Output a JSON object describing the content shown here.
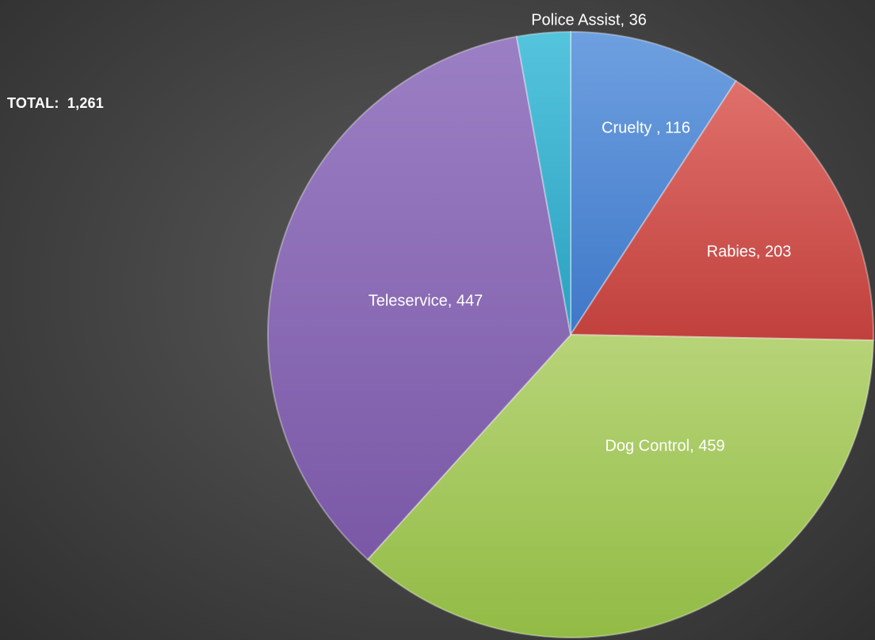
{
  "total_label": "TOTAL:  1,261",
  "chart_data": {
    "type": "pie",
    "categories": [
      "Cruelty",
      "Rabies",
      "Dog Control",
      "Teleservice",
      "Police Assist"
    ],
    "values": [
      116,
      203,
      459,
      447,
      36
    ],
    "labels": [
      "Cruelty , 116",
      "Rabies, 203",
      "Dog Control, 459",
      "Teleservice, 447",
      "Police Assist, 36"
    ],
    "colors": [
      "#5b8fd6",
      "#d4524f",
      "#a5c95c",
      "#8b6cb4",
      "#3fb5d1"
    ],
    "start_angle_deg": 0,
    "direction": "clockwise"
  }
}
